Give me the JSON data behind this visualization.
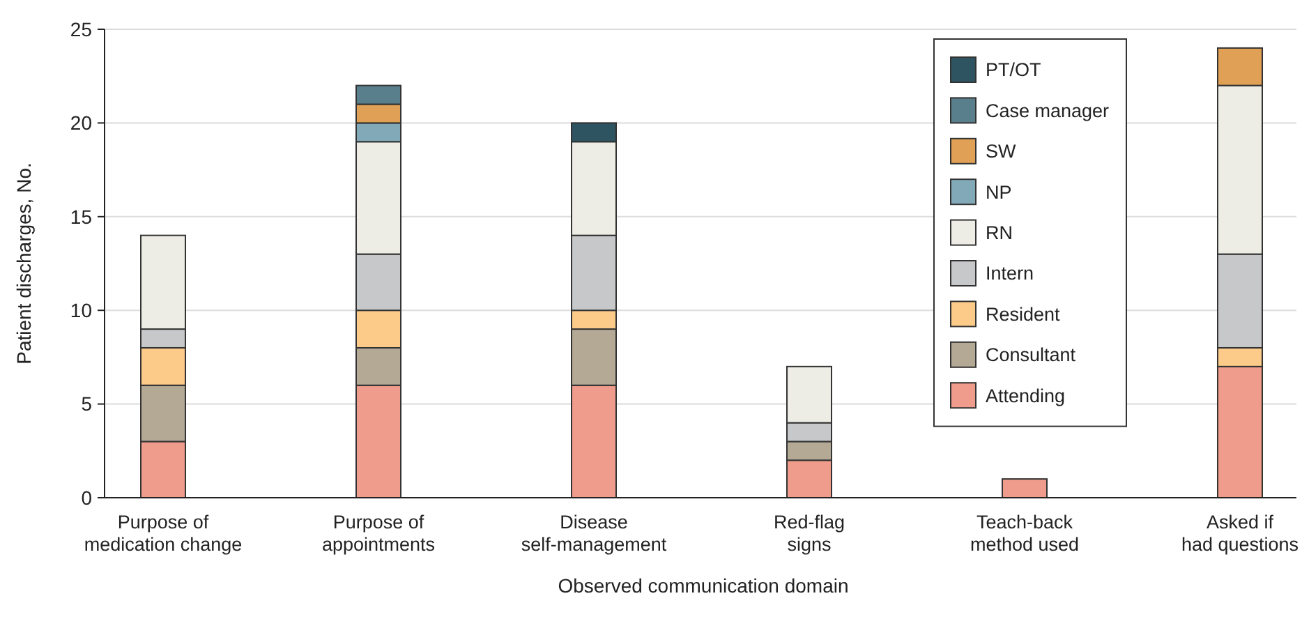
{
  "chart_data": {
    "type": "bar",
    "stacked": true,
    "xlabel": "Observed communication domain",
    "ylabel": "Patient discharges, No.",
    "categories": [
      "Purpose of\nmedication change",
      "Purpose of\nappointments",
      "Disease\nself-management",
      "Red-flag\nsigns",
      "Teach-back\nmethod used",
      "Asked if\nhad questions"
    ],
    "series": [
      {
        "name": "Attending",
        "color": "#f09c8c",
        "values": [
          3,
          6,
          6,
          2,
          1,
          7
        ]
      },
      {
        "name": "Consultant",
        "color": "#b3a995",
        "values": [
          3,
          2,
          3,
          1,
          0,
          0
        ]
      },
      {
        "name": "Resident",
        "color": "#fccb8a",
        "values": [
          2,
          2,
          1,
          0,
          0,
          1
        ]
      },
      {
        "name": "Intern",
        "color": "#c7c8ca",
        "values": [
          1,
          3,
          4,
          1,
          0,
          5
        ]
      },
      {
        "name": "RN",
        "color": "#edede6",
        "values": [
          5,
          6,
          5,
          3,
          0,
          9
        ]
      },
      {
        "name": "NP",
        "color": "#82a9b8",
        "values": [
          0,
          1,
          0,
          0,
          0,
          0
        ]
      },
      {
        "name": "SW",
        "color": "#e0a055",
        "values": [
          0,
          1,
          0,
          0,
          0,
          2
        ]
      },
      {
        "name": "Case manager",
        "color": "#5a7f8c",
        "values": [
          0,
          1,
          0,
          0,
          0,
          0
        ]
      },
      {
        "name": "PT/OT",
        "color": "#2e5462",
        "values": [
          0,
          0,
          1,
          0,
          0,
          0
        ]
      }
    ],
    "ylim": [
      0,
      25
    ],
    "yticks": [
      0,
      5,
      10,
      15,
      20,
      25
    ],
    "grid": "y",
    "legend": "top right"
  }
}
